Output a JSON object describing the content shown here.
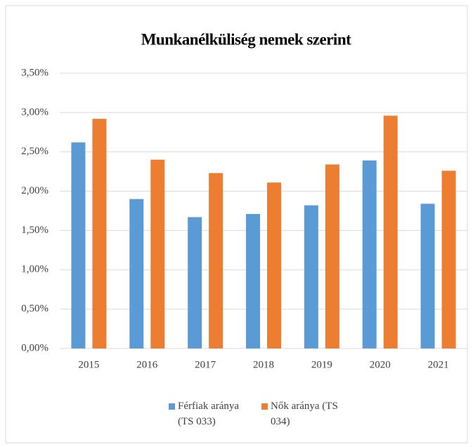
{
  "chart_data": {
    "type": "bar",
    "title": "Munkanélküliség nemek szerint",
    "categories": [
      "2015",
      "2016",
      "2017",
      "2018",
      "2019",
      "2020",
      "2021"
    ],
    "series": [
      {
        "name": "Férfiak aránya (TS 033)",
        "color": "#5b9bd5",
        "values": [
          2.62,
          1.9,
          1.67,
          1.71,
          1.82,
          2.39,
          1.84
        ]
      },
      {
        "name": "Nők aránya (TS 034)",
        "color": "#ed7d31",
        "values": [
          2.92,
          2.4,
          2.23,
          2.11,
          2.34,
          2.96,
          2.26
        ]
      }
    ],
    "ylim": [
      0,
      3.5
    ],
    "yticks": [
      {
        "value": 0,
        "label": "0,00%"
      },
      {
        "value": 0.5,
        "label": "0,50%"
      },
      {
        "value": 1,
        "label": "1,00%"
      },
      {
        "value": 1.5,
        "label": "1,50%"
      },
      {
        "value": 2,
        "label": "2,00%"
      },
      {
        "value": 2.5,
        "label": "2,50%"
      },
      {
        "value": 3,
        "label": "3,00%"
      },
      {
        "value": 3.5,
        "label": "3,50%"
      }
    ],
    "grid": true,
    "legend": "bottom"
  }
}
